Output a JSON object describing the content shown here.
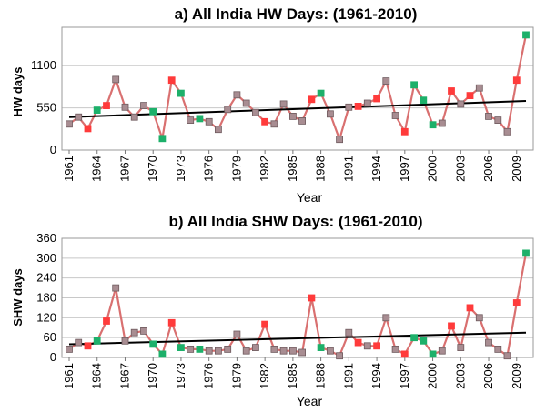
{
  "colors": {
    "series_line": "#d97070",
    "marker_default": "#a88d92",
    "marker_default_stroke": "#6e5a5e",
    "marker_high": "#ff3b3b",
    "marker_low": "#1db06a",
    "trend": "#000000"
  },
  "chart_data": [
    {
      "type": "line",
      "title": "a) All India HW Days: (1961-2010)",
      "xlabel": "Year",
      "ylabel": "HW days",
      "x_tick_labels": [
        "1961",
        "1964",
        "1967",
        "1970",
        "1973",
        "1976",
        "1979",
        "1982",
        "1985",
        "1988",
        "1991",
        "1994",
        "1997",
        "2000",
        "2003",
        "2006",
        "2009"
      ],
      "y_tick_labels": [
        "0",
        "550",
        "1100"
      ],
      "y_ticks": [
        0,
        550,
        1100
      ],
      "xlim": [
        1961,
        2010
      ],
      "ylim": [
        0,
        1600
      ],
      "grid": "horizontal",
      "x": [
        1961,
        1962,
        1963,
        1964,
        1965,
        1966,
        1967,
        1968,
        1969,
        1970,
        1971,
        1972,
        1973,
        1974,
        1975,
        1976,
        1977,
        1978,
        1979,
        1980,
        1981,
        1982,
        1983,
        1984,
        1985,
        1986,
        1987,
        1988,
        1989,
        1990,
        1991,
        1992,
        1993,
        1994,
        1995,
        1996,
        1997,
        1998,
        1999,
        2000,
        2001,
        2002,
        2003,
        2004,
        2005,
        2006,
        2007,
        2008,
        2009,
        2010
      ],
      "values": [
        340,
        430,
        280,
        520,
        580,
        920,
        560,
        430,
        580,
        500,
        150,
        910,
        740,
        390,
        410,
        370,
        270,
        530,
        720,
        610,
        490,
        370,
        340,
        600,
        440,
        380,
        660,
        740,
        470,
        140,
        560,
        570,
        610,
        670,
        900,
        450,
        240,
        850,
        650,
        330,
        350,
        770,
        600,
        710,
        810,
        440,
        390,
        240,
        910,
        1500
      ],
      "marker": [
        "d",
        "d",
        "h",
        "l",
        "h",
        "d",
        "d",
        "d",
        "d",
        "l",
        "l",
        "h",
        "l",
        "d",
        "l",
        "d",
        "d",
        "d",
        "d",
        "d",
        "d",
        "h",
        "d",
        "d",
        "d",
        "d",
        "h",
        "l",
        "d",
        "d",
        "d",
        "h",
        "d",
        "h",
        "d",
        "d",
        "h",
        "l",
        "l",
        "l",
        "d",
        "h",
        "d",
        "h",
        "d",
        "d",
        "d",
        "d",
        "h",
        "l"
      ],
      "trend": {
        "start": 430,
        "end": 640
      }
    },
    {
      "type": "line",
      "title": "b) All India SHW Days: (1961-2010)",
      "xlabel": "Year",
      "ylabel": "SHW days",
      "x_tick_labels": [
        "1961",
        "1964",
        "1967",
        "1970",
        "1973",
        "1976",
        "1979",
        "1982",
        "1985",
        "1988",
        "1991",
        "1994",
        "1997",
        "2000",
        "2003",
        "2006",
        "2009"
      ],
      "y_tick_labels": [
        "0",
        "60",
        "120",
        "180",
        "240",
        "300",
        "360"
      ],
      "y_ticks": [
        0,
        60,
        120,
        180,
        240,
        300,
        360
      ],
      "xlim": [
        1961,
        2010
      ],
      "ylim": [
        0,
        360
      ],
      "grid": "horizontal",
      "x": [
        1961,
        1962,
        1963,
        1964,
        1965,
        1966,
        1967,
        1968,
        1969,
        1970,
        1971,
        1972,
        1973,
        1974,
        1975,
        1976,
        1977,
        1978,
        1979,
        1980,
        1981,
        1982,
        1983,
        1984,
        1985,
        1986,
        1987,
        1988,
        1989,
        1990,
        1991,
        1992,
        1993,
        1994,
        1995,
        1996,
        1997,
        1998,
        1999,
        2000,
        2001,
        2002,
        2003,
        2004,
        2005,
        2006,
        2007,
        2008,
        2009,
        2010
      ],
      "values": [
        25,
        45,
        35,
        50,
        110,
        210,
        50,
        75,
        80,
        40,
        10,
        105,
        30,
        25,
        25,
        20,
        20,
        25,
        70,
        20,
        30,
        100,
        25,
        20,
        20,
        15,
        180,
        30,
        20,
        5,
        75,
        45,
        35,
        35,
        120,
        25,
        10,
        60,
        50,
        10,
        20,
        95,
        30,
        150,
        120,
        45,
        25,
        5,
        165,
        315
      ],
      "marker": [
        "d",
        "d",
        "h",
        "l",
        "h",
        "d",
        "d",
        "d",
        "d",
        "l",
        "l",
        "h",
        "l",
        "d",
        "l",
        "d",
        "d",
        "d",
        "d",
        "d",
        "d",
        "h",
        "d",
        "d",
        "d",
        "d",
        "h",
        "l",
        "d",
        "d",
        "d",
        "h",
        "d",
        "h",
        "d",
        "d",
        "h",
        "l",
        "l",
        "l",
        "d",
        "h",
        "d",
        "h",
        "d",
        "d",
        "d",
        "d",
        "h",
        "l"
      ],
      "trend": {
        "start": 40,
        "end": 75
      }
    }
  ]
}
